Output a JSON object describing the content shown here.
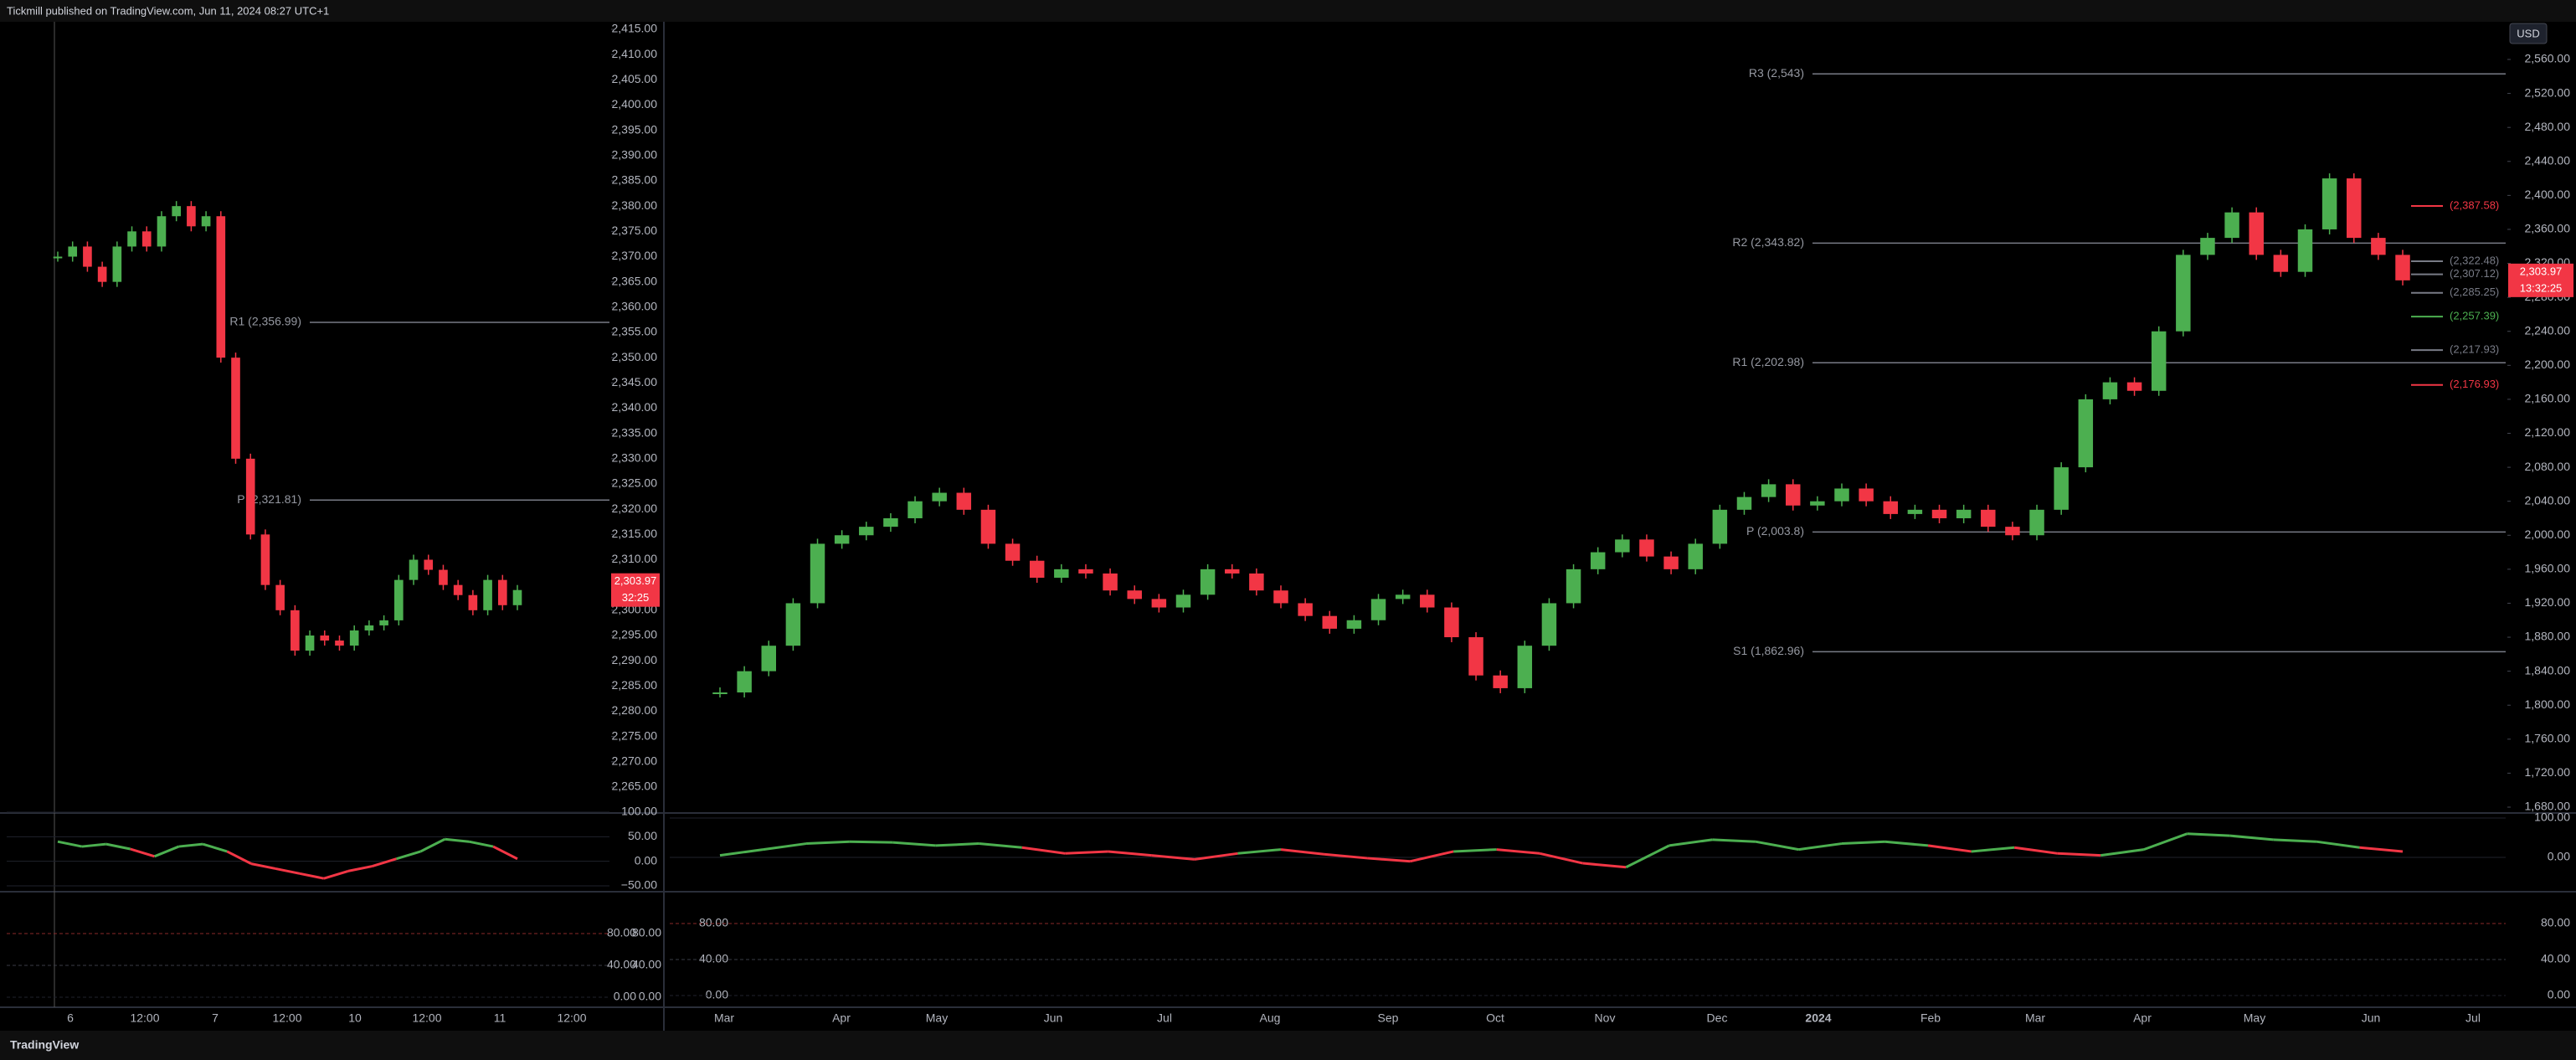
{
  "header": {
    "title": "Tickmill published on TradingView.com, Jun 11, 2024 08:27 UTC+1"
  },
  "currency": "USD",
  "footer": {
    "brand": "TradingView"
  },
  "left_chart": {
    "price_ticks": [
      {
        "value": 2415,
        "label": "2,415.00"
      },
      {
        "value": 2410,
        "label": "2,410.00"
      },
      {
        "value": 2405,
        "label": "2,405.00"
      },
      {
        "value": 2400,
        "label": "2,400.00"
      },
      {
        "value": 2395,
        "label": "2,395.00"
      },
      {
        "value": 2390,
        "label": "2,390.00"
      },
      {
        "value": 2385,
        "label": "2,385.00"
      },
      {
        "value": 2380,
        "label": "2,380.00"
      },
      {
        "value": 2375,
        "label": "2,375.00"
      },
      {
        "value": 2370,
        "label": "2,370.00"
      },
      {
        "value": 2365,
        "label": "2,365.00"
      },
      {
        "value": 2360,
        "label": "2,360.00"
      },
      {
        "value": 2355,
        "label": "2,355.00"
      },
      {
        "value": 2350,
        "label": "2,350.00"
      },
      {
        "value": 2345,
        "label": "2,345.00"
      },
      {
        "value": 2340,
        "label": "2,340.00"
      },
      {
        "value": 2335,
        "label": "2,335.00"
      },
      {
        "value": 2330,
        "label": "2,330.00"
      },
      {
        "value": 2325,
        "label": "2,325.00"
      },
      {
        "value": 2320,
        "label": "2,320.00"
      },
      {
        "value": 2315,
        "label": "2,315.00"
      },
      {
        "value": 2310,
        "label": "2,310.00"
      },
      {
        "value": 2305,
        "label": "2,305.00"
      },
      {
        "value": 2300,
        "label": "2,300.00"
      },
      {
        "value": 2295,
        "label": "2,295.00"
      },
      {
        "value": 2290,
        "label": "2,290.00"
      },
      {
        "value": 2285,
        "label": "2,285.00"
      },
      {
        "value": 2280,
        "label": "2,280.00"
      },
      {
        "value": 2275,
        "label": "2,275.00"
      },
      {
        "value": 2270,
        "label": "2,270.00"
      },
      {
        "value": 2265,
        "label": "2,265.00"
      }
    ],
    "time_labels": [
      "6",
      "12:00",
      "7",
      "12:00",
      "10",
      "12:00",
      "11",
      "12:00"
    ],
    "levels": [
      {
        "label": "R1 (2,356.99)",
        "value": 2356.99
      },
      {
        "label": "P (2,321.81)",
        "value": 2321.81
      }
    ],
    "closes": [
      2370,
      2372,
      2368,
      2365,
      2372,
      2375,
      2372,
      2378,
      2380,
      2376,
      2378,
      2350,
      2330,
      2315,
      2305,
      2300,
      2292,
      2295,
      2294,
      2293,
      2296,
      2297,
      2298,
      2306,
      2310,
      2308,
      2305,
      2303,
      2300,
      2306,
      2301,
      2304
    ],
    "last_price": "2,303.97",
    "countdown": "32:25",
    "osc1_ticks": [
      {
        "value": 100,
        "label": "100.00"
      },
      {
        "value": 50,
        "label": "50.00"
      },
      {
        "value": 0,
        "label": "0.00"
      },
      {
        "value": -50,
        "label": "−50.00"
      }
    ],
    "osc1_values": [
      40,
      30,
      35,
      25,
      10,
      30,
      35,
      20,
      -5,
      -15,
      -25,
      -35,
      -20,
      -10,
      5,
      20,
      45,
      40,
      30,
      5
    ],
    "osc2_ticks": [
      {
        "value": 80,
        "label": "80.00"
      },
      {
        "value": 40,
        "label": "40.00"
      },
      {
        "value": 0,
        "label": "0.00"
      }
    ]
  },
  "right_chart": {
    "price_ticks": [
      {
        "value": 2560,
        "label": "2,560.00"
      },
      {
        "value": 2520,
        "label": "2,520.00"
      },
      {
        "value": 2480,
        "label": "2,480.00"
      },
      {
        "value": 2440,
        "label": "2,440.00"
      },
      {
        "value": 2400,
        "label": "2,400.00"
      },
      {
        "value": 2360,
        "label": "2,360.00"
      },
      {
        "value": 2320,
        "label": "2,320.00"
      },
      {
        "value": 2280,
        "label": "2,280.00"
      },
      {
        "value": 2240,
        "label": "2,240.00"
      },
      {
        "value": 2200,
        "label": "2,200.00"
      },
      {
        "value": 2160,
        "label": "2,160.00"
      },
      {
        "value": 2120,
        "label": "2,120.00"
      },
      {
        "value": 2080,
        "label": "2,080.00"
      },
      {
        "value": 2040,
        "label": "2,040.00"
      },
      {
        "value": 2000,
        "label": "2,000.00"
      },
      {
        "value": 1960,
        "label": "1,960.00"
      },
      {
        "value": 1920,
        "label": "1,920.00"
      },
      {
        "value": 1880,
        "label": "1,880.00"
      },
      {
        "value": 1840,
        "label": "1,840.00"
      },
      {
        "value": 1800,
        "label": "1,800.00"
      },
      {
        "value": 1760,
        "label": "1,760.00"
      },
      {
        "value": 1720,
        "label": "1,720.00"
      },
      {
        "value": 1680,
        "label": "1,680.00"
      }
    ],
    "time_labels": [
      "Mar",
      "Apr",
      "May",
      "Jun",
      "Jul",
      "Aug",
      "Sep",
      "Oct",
      "Nov",
      "Dec",
      "2024",
      "Feb",
      "Mar",
      "Apr",
      "May",
      "Jun",
      "Jul"
    ],
    "levels": [
      {
        "label": "R3 (2,543)",
        "value": 2543
      },
      {
        "label": "R2 (2,343.82)",
        "value": 2343.82
      },
      {
        "label": "R1 (2,202.98)",
        "value": 2202.98
      },
      {
        "label": "P (2,003.8)",
        "value": 2003.8
      },
      {
        "label": "S1 (1,862.96)",
        "value": 1862.96
      }
    ],
    "side_levels": [
      {
        "label": "(2,387.58)",
        "value": 2387.58,
        "color": "#f23645"
      },
      {
        "label": "(2,322.48)",
        "value": 2322.48,
        "color": "#787b86"
      },
      {
        "label": "(2,307.12)",
        "value": 2307.12,
        "color": "#787b86"
      },
      {
        "label": "(2,285.25)",
        "value": 2285.25,
        "color": "#787b86"
      },
      {
        "label": "(2,257.39)",
        "value": 2257.39,
        "color": "#4caf50"
      },
      {
        "label": "(2,217.93)",
        "value": 2217.93,
        "color": "#787b86"
      },
      {
        "label": "(2,176.93)",
        "value": 2176.93,
        "color": "#f23645"
      }
    ],
    "closes": [
      1815,
      1840,
      1870,
      1920,
      1990,
      2000,
      2010,
      2020,
      2040,
      2050,
      2030,
      1990,
      1970,
      1950,
      1960,
      1955,
      1935,
      1925,
      1915,
      1930,
      1960,
      1955,
      1935,
      1920,
      1905,
      1890,
      1900,
      1925,
      1930,
      1915,
      1880,
      1835,
      1820,
      1870,
      1920,
      1960,
      1980,
      1995,
      1975,
      1960,
      1990,
      2030,
      2045,
      2060,
      2035,
      2040,
      2055,
      2040,
      2025,
      2030,
      2020,
      2030,
      2010,
      2000,
      2030,
      2080,
      2160,
      2180,
      2170,
      2240,
      2330,
      2350,
      2380,
      2330,
      2310,
      2360,
      2420,
      2350,
      2330,
      2300
    ],
    "last_price": "2,303.97",
    "countdown": "13:32:25",
    "osc1_ticks": [
      {
        "value": 100,
        "label": "100.00"
      },
      {
        "value": 0,
        "label": "0.00"
      }
    ],
    "osc1_values": [
      5,
      20,
      35,
      40,
      38,
      30,
      35,
      25,
      10,
      15,
      5,
      -5,
      10,
      20,
      8,
      -2,
      -10,
      15,
      20,
      10,
      -15,
      -25,
      30,
      45,
      40,
      20,
      35,
      40,
      30,
      15,
      25,
      10,
      5,
      20,
      60,
      55,
      45,
      40,
      25,
      15
    ],
    "osc2_ticks": [
      {
        "value": 80,
        "label": "80.00"
      },
      {
        "value": 40,
        "label": "40.00"
      },
      {
        "value": 0,
        "label": "0.00"
      }
    ]
  }
}
